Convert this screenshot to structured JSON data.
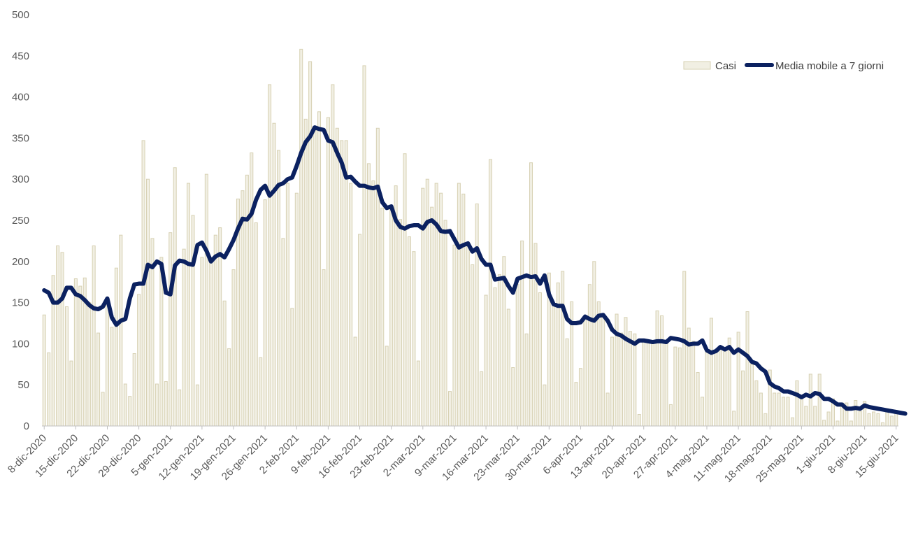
{
  "chart_data": {
    "type": "bar",
    "title": "",
    "xlabel": "",
    "ylabel": "",
    "ylim": [
      0,
      500
    ],
    "yticks": [
      0,
      50,
      100,
      150,
      200,
      250,
      300,
      350,
      400,
      450,
      500
    ],
    "grid": false,
    "legend_position": "top-right",
    "x_tick_labels": [
      "8-dic-2020",
      "15-dic-2020",
      "22-dic-2020",
      "29-dic-2020",
      "5-gen-2021",
      "12-gen-2021",
      "19-gen-2021",
      "26-gen-2021",
      "2-feb-2021",
      "9-feb-2021",
      "16-feb-2021",
      "23-feb-2021",
      "2-mar-2021",
      "9-mar-2021",
      "16-mar-2021",
      "23-mar-2021",
      "30-mar-2021",
      "6-apr-2021",
      "13-apr-2021",
      "20-apr-2021",
      "27-apr-2021",
      "4-mag-2021",
      "11-mag-2021",
      "18-mag-2021",
      "25-mag-2021",
      "1-giu-2021",
      "8-giu-2021",
      "15-giu-2021"
    ],
    "series": [
      {
        "name": "Casi",
        "type": "bar",
        "color": "#f1efe3",
        "stroke": "#d7d1b3",
        "values": [
          135,
          89,
          183,
          219,
          211,
          145,
          79,
          179,
          170,
          180,
          150,
          219,
          113,
          41,
          150,
          120,
          192,
          232,
          51,
          36,
          88,
          160,
          347,
          300,
          228,
          51,
          205,
          54,
          235,
          314,
          44,
          215,
          295,
          256,
          50,
          205,
          306,
          205,
          232,
          241,
          152,
          94,
          190,
          276,
          286,
          305,
          332,
          247,
          83,
          275,
          415,
          368,
          335,
          228,
          295,
          143,
          283,
          458,
          373,
          443,
          360,
          382,
          190,
          375,
          415,
          362,
          347,
          347,
          295,
          108,
          233,
          438,
          319,
          298,
          362,
          265,
          97,
          267,
          292,
          251,
          331,
          230,
          212,
          79,
          289,
          300,
          266,
          295,
          283,
          250,
          42,
          220,
          295,
          282,
          221,
          196,
          270,
          66,
          159,
          324,
          168,
          184,
          206,
          142,
          71,
          172,
          225,
          112,
          320,
          222,
          162,
          50,
          186,
          148,
          174,
          188,
          106,
          151,
          53,
          70,
          130,
          172,
          200,
          151,
          132,
          40,
          108,
          136,
          113,
          132,
          115,
          112,
          14,
          104,
          103,
          103,
          140,
          134,
          100,
          26,
          96,
          95,
          188,
          119,
          103,
          65,
          35,
          90,
          131,
          90,
          95,
          93,
          107,
          18,
          114,
          67,
          139,
          75,
          55,
          40,
          15,
          68,
          40,
          40,
          35,
          35,
          10,
          55,
          35,
          24,
          63,
          24,
          63,
          7,
          17,
          33,
          6,
          28,
          28,
          6,
          31,
          18,
          30,
          15,
          17,
          15,
          4,
          21,
          12,
          19
        ]
      },
      {
        "name": "Media mobile a 7 giorni",
        "type": "line",
        "color": "#0b2160",
        "values": [
          165,
          162,
          150,
          150,
          155,
          168,
          168,
          160,
          158,
          153,
          147,
          143,
          142,
          145,
          155,
          132,
          123,
          128,
          130,
          155,
          172,
          173,
          173,
          196,
          193,
          200,
          197,
          162,
          160,
          195,
          201,
          200,
          197,
          196,
          220,
          223,
          213,
          200,
          206,
          209,
          205,
          215,
          226,
          240,
          252,
          251,
          258,
          275,
          287,
          292,
          280,
          286,
          293,
          295,
          300,
          302,
          316,
          332,
          345,
          352,
          363,
          361,
          360,
          347,
          345,
          332,
          320,
          302,
          303,
          297,
          292,
          292,
          290,
          289,
          291,
          272,
          265,
          267,
          250,
          242,
          240,
          243,
          244,
          244,
          240,
          248,
          250,
          245,
          237,
          236,
          237,
          227,
          217,
          220,
          222,
          212,
          216,
          203,
          196,
          196,
          178,
          179,
          180,
          170,
          162,
          179,
          181,
          183,
          181,
          182,
          173,
          183,
          160,
          148,
          146,
          146,
          130,
          125,
          125,
          126,
          133,
          130,
          128,
          134,
          135,
          128,
          117,
          112,
          110,
          106,
          103,
          100,
          104,
          104,
          103,
          102,
          103,
          103,
          102,
          107,
          106,
          105,
          103,
          99,
          100,
          100,
          104,
          92,
          89,
          91,
          96,
          93,
          96,
          89,
          93,
          89,
          85,
          78,
          76,
          70,
          66,
          52,
          48,
          46,
          42,
          42,
          40,
          38,
          35,
          38,
          36,
          40,
          39,
          33,
          33,
          30,
          26,
          26,
          21,
          21,
          22,
          21,
          25,
          23,
          22,
          21,
          20,
          19,
          18,
          17,
          16,
          15
        ]
      }
    ]
  }
}
